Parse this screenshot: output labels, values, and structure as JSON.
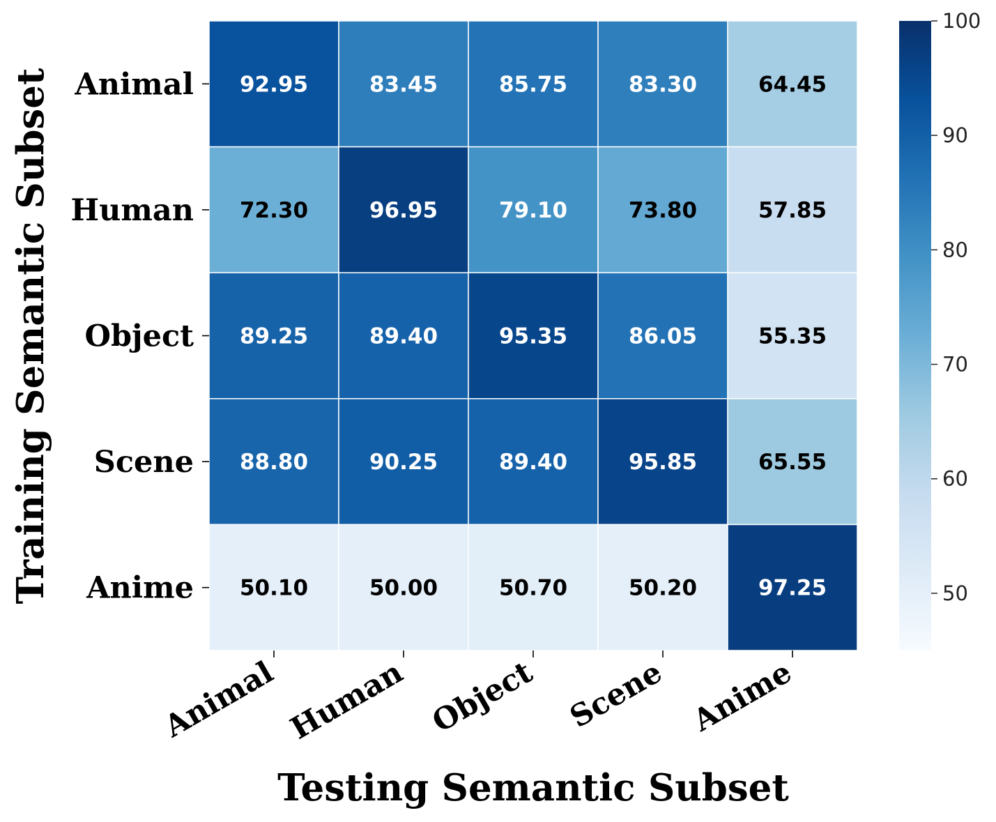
{
  "chart_data": {
    "type": "heatmap",
    "xlabel": "Testing Semantic Subset",
    "ylabel": "Training Semantic Subset",
    "x_categories": [
      "Animal",
      "Human",
      "Object",
      "Scene",
      "Anime"
    ],
    "y_categories": [
      "Animal",
      "Human",
      "Object",
      "Scene",
      "Anime"
    ],
    "values": [
      [
        92.95,
        83.45,
        85.75,
        83.3,
        64.45
      ],
      [
        72.3,
        96.95,
        79.1,
        73.8,
        57.85
      ],
      [
        89.25,
        89.4,
        95.35,
        86.05,
        55.35
      ],
      [
        88.8,
        90.25,
        89.4,
        95.85,
        65.55
      ],
      [
        50.1,
        50.0,
        50.7,
        50.2,
        97.25
      ]
    ],
    "value_labels": [
      [
        "92.95",
        "83.45",
        "85.75",
        "83.30",
        "64.45"
      ],
      [
        "72.30",
        "96.95",
        "79.10",
        "73.80",
        "57.85"
      ],
      [
        "89.25",
        "89.40",
        "95.35",
        "86.05",
        "55.35"
      ],
      [
        "88.80",
        "90.25",
        "89.40",
        "95.85",
        "65.55"
      ],
      [
        "50.10",
        "50.00",
        "50.70",
        "50.20",
        "97.25"
      ]
    ],
    "colormap": "Blues",
    "colorbar": {
      "range": [
        45,
        100
      ],
      "ticks": [
        50,
        60,
        70,
        80,
        90,
        100
      ],
      "tick_labels": [
        "50",
        "60",
        "70",
        "80",
        "90",
        "100"
      ]
    },
    "colors": {
      "light_text": "#ffffff",
      "dark_text": "#000000",
      "cell_border": "#ffffff"
    }
  }
}
